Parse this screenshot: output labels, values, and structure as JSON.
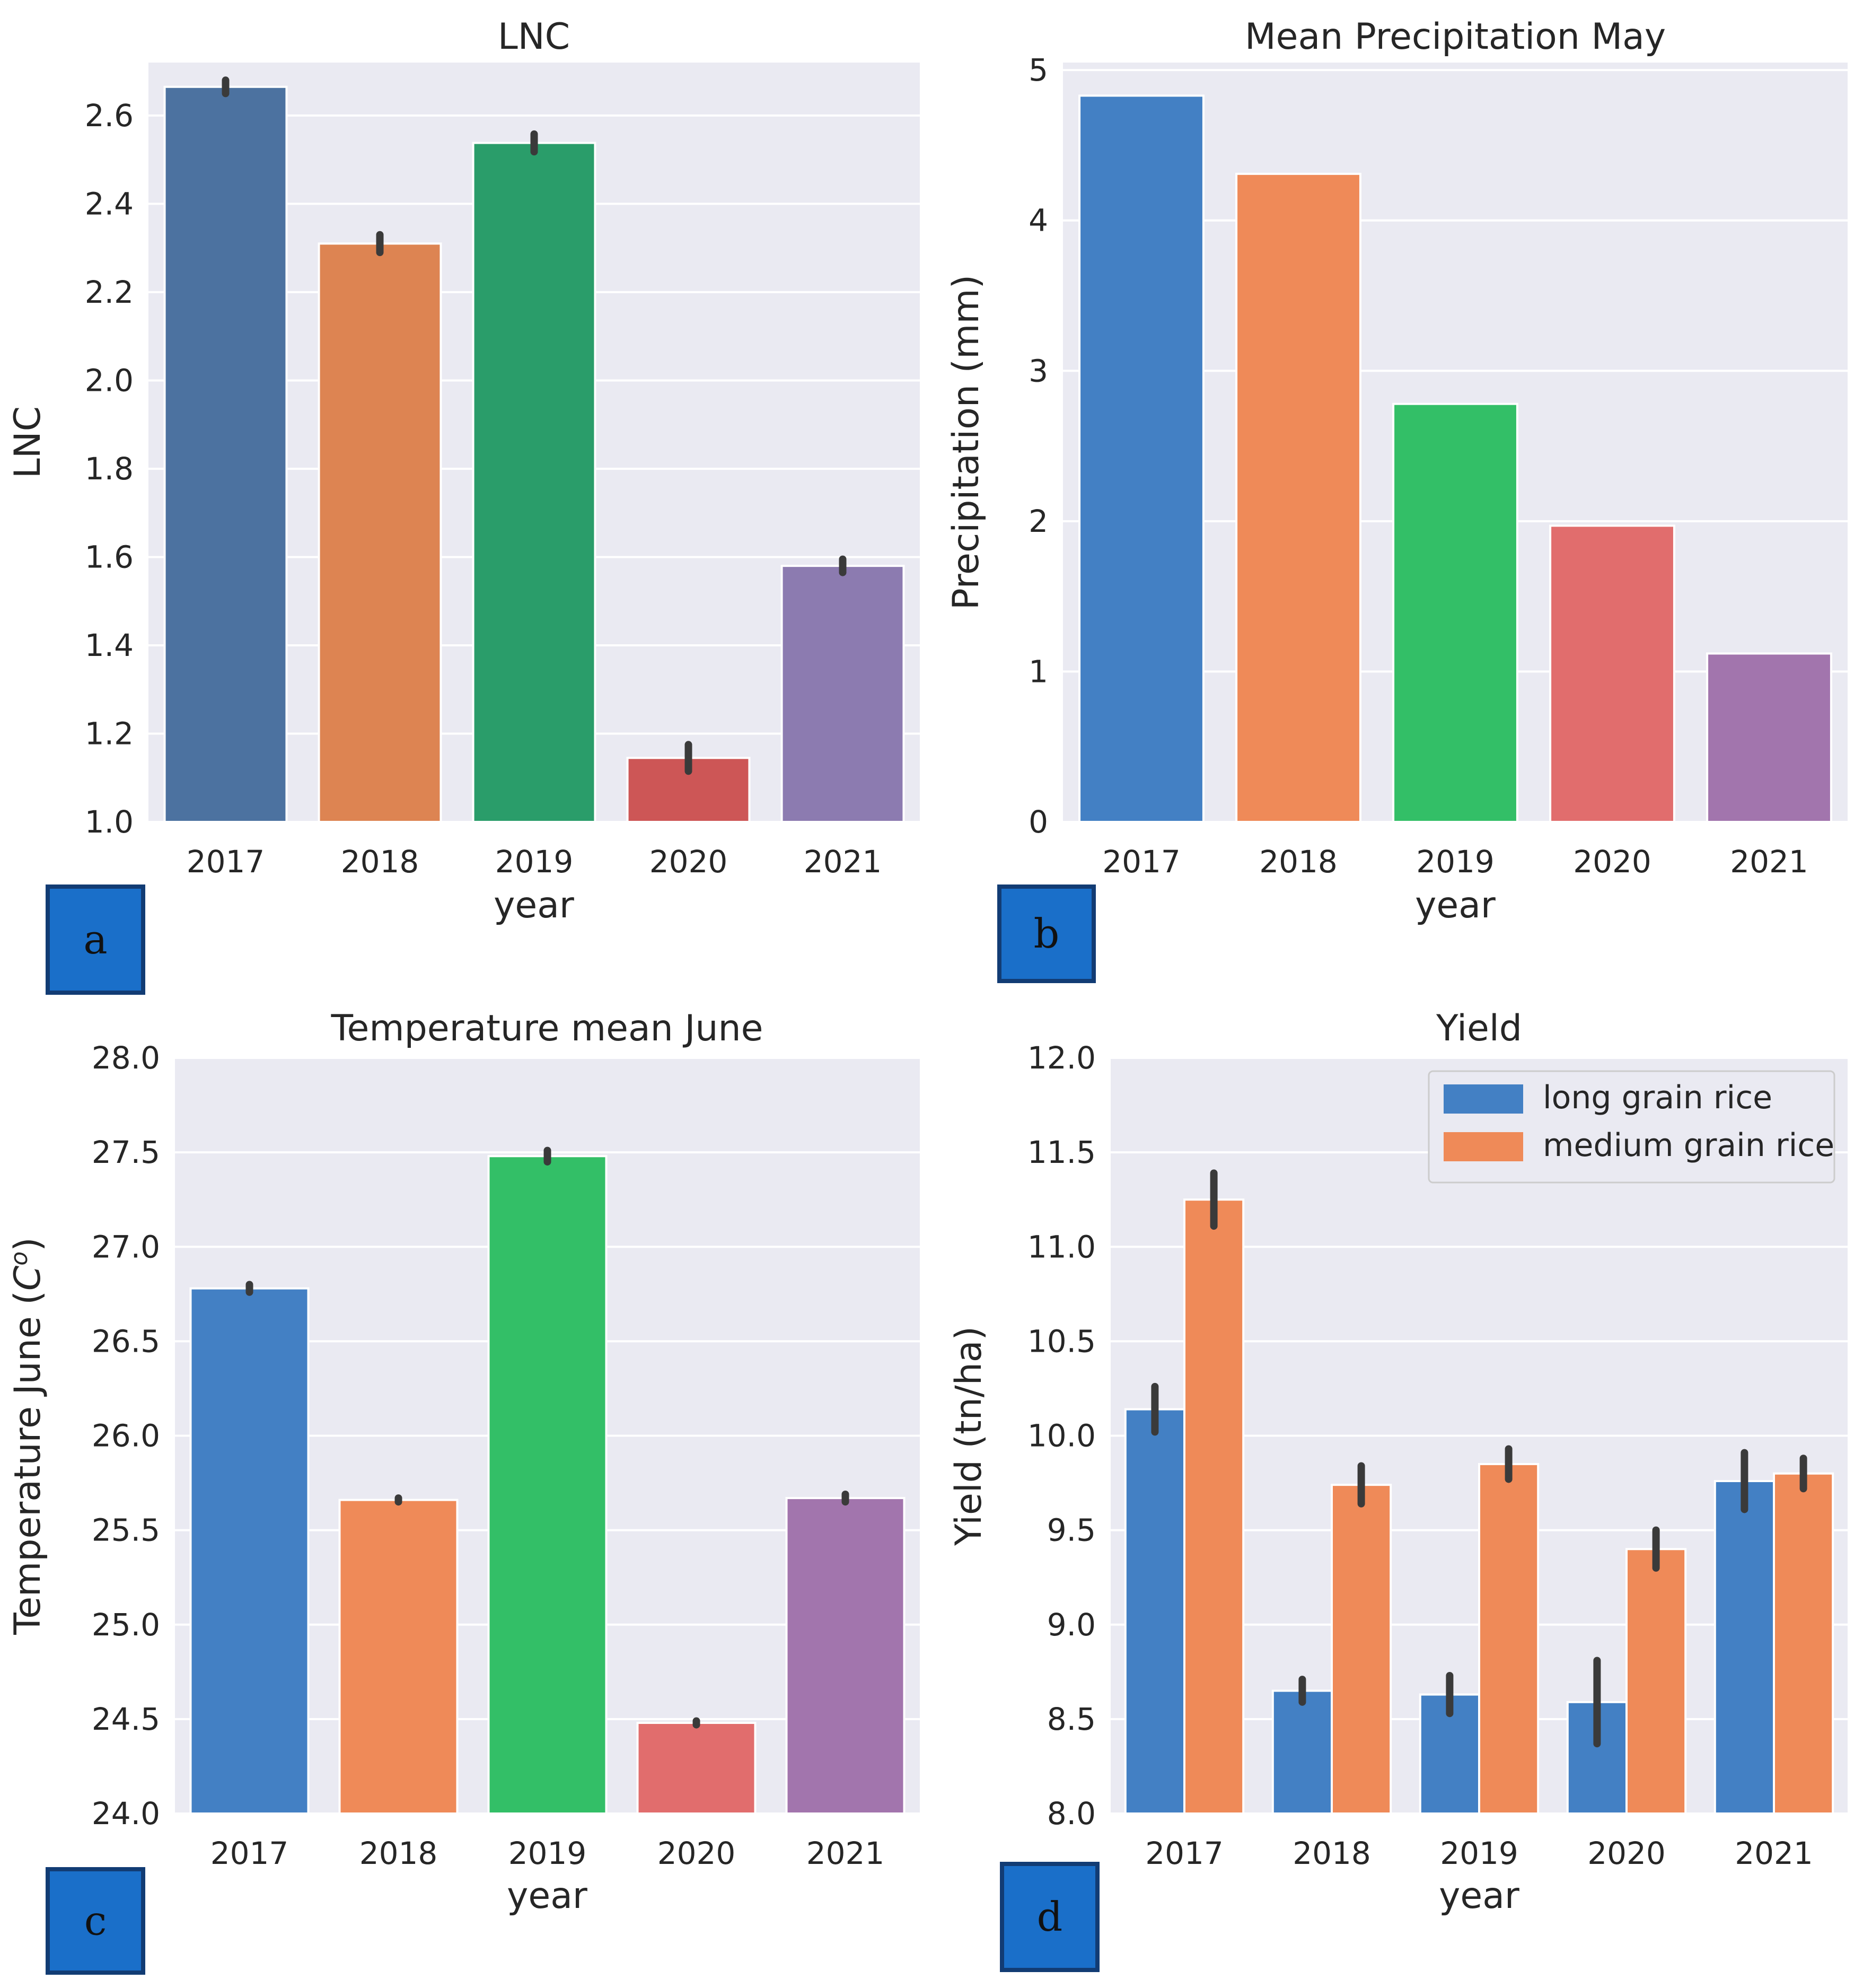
{
  "chart_data": [
    {
      "id": "a",
      "panel_label": "a",
      "type": "bar",
      "title": "LNC",
      "xlabel": "year",
      "ylabel": "LNC",
      "categories": [
        "2017",
        "2018",
        "2019",
        "2020",
        "2021"
      ],
      "values": [
        2.665,
        2.31,
        2.538,
        1.145,
        1.58
      ],
      "errors": [
        0.015,
        0.02,
        0.02,
        0.03,
        0.015
      ],
      "colors": [
        "#4c72a0",
        "#dd8452",
        "#2a9d6a",
        "#cd5656",
        "#8c7bb0"
      ],
      "ylim": [
        1.0,
        2.72
      ],
      "yticks": [
        1.0,
        1.2,
        1.4,
        1.6,
        1.8,
        2.0,
        2.2,
        2.4,
        2.6
      ],
      "ytick_labels": [
        "1.0",
        "1.2",
        "1.4",
        "1.6",
        "1.8",
        "2.0",
        "2.2",
        "2.4",
        "2.6"
      ],
      "grid": true
    },
    {
      "id": "b",
      "panel_label": "b",
      "type": "bar",
      "title": "Mean Precipitation May",
      "xlabel": "year",
      "ylabel": "Precipitation (mm)",
      "categories": [
        "2017",
        "2018",
        "2019",
        "2020",
        "2021"
      ],
      "values": [
        4.83,
        4.31,
        2.78,
        1.97,
        1.12
      ],
      "errors": [
        0,
        0,
        0,
        0,
        0
      ],
      "colors": [
        "#4380c4",
        "#ef8a58",
        "#33bf67",
        "#e16d6d",
        "#a275ad"
      ],
      "ylim": [
        0,
        5.05
      ],
      "yticks": [
        0,
        1,
        2,
        3,
        4,
        5
      ],
      "ytick_labels": [
        "0",
        "1",
        "2",
        "3",
        "4",
        "5"
      ],
      "grid": true
    },
    {
      "id": "c",
      "panel_label": "c",
      "type": "bar",
      "title": "Temperature mean June",
      "xlabel": "year",
      "ylabel": "Temperature June",
      "ylabel_unit": "C",
      "ylabel_unit_sup": "o",
      "categories": [
        "2017",
        "2018",
        "2019",
        "2020",
        "2021"
      ],
      "values": [
        26.78,
        25.66,
        27.48,
        24.48,
        25.67
      ],
      "errors": [
        0.02,
        0.01,
        0.03,
        0.01,
        0.02
      ],
      "colors": [
        "#4380c4",
        "#ef8a58",
        "#33bf67",
        "#e16d6d",
        "#a275ad"
      ],
      "ylim": [
        24.0,
        28.0
      ],
      "yticks": [
        24.0,
        24.5,
        25.0,
        25.5,
        26.0,
        26.5,
        27.0,
        27.5,
        28.0
      ],
      "ytick_labels": [
        "24.0",
        "24.5",
        "25.0",
        "25.5",
        "26.0",
        "26.5",
        "27.0",
        "27.5",
        "28.0"
      ],
      "grid": true
    },
    {
      "id": "d",
      "panel_label": "d",
      "type": "bar",
      "title": "Yield",
      "xlabel": "year",
      "ylabel": "Yield (tn/ha)",
      "categories": [
        "2017",
        "2018",
        "2019",
        "2020",
        "2021"
      ],
      "series": [
        {
          "name": "long grain rice",
          "color": "#4380c4",
          "values": [
            10.14,
            8.65,
            8.63,
            8.59,
            9.76
          ],
          "errors": [
            0.12,
            0.06,
            0.1,
            0.22,
            0.15
          ]
        },
        {
          "name": "medium grain rice",
          "color": "#ef8a58",
          "values": [
            11.25,
            9.74,
            9.85,
            9.4,
            9.8
          ],
          "errors": [
            0.14,
            0.1,
            0.08,
            0.1,
            0.08
          ]
        }
      ],
      "ylim": [
        8.0,
        12.0
      ],
      "yticks": [
        8.0,
        8.5,
        9.0,
        9.5,
        10.0,
        10.5,
        11.0,
        11.5,
        12.0
      ],
      "ytick_labels": [
        "8.0",
        "8.5",
        "9.0",
        "9.5",
        "10.0",
        "10.5",
        "11.0",
        "11.5",
        "12.0"
      ],
      "legend": "top-right",
      "grid": true
    }
  ],
  "colors": {
    "axes_background": "#eaeaf2",
    "grid": "#ffffff",
    "error_bar": "#3a3a3a",
    "label_box_fill": "#1a6fc9",
    "label_box_border": "#123c74"
  }
}
